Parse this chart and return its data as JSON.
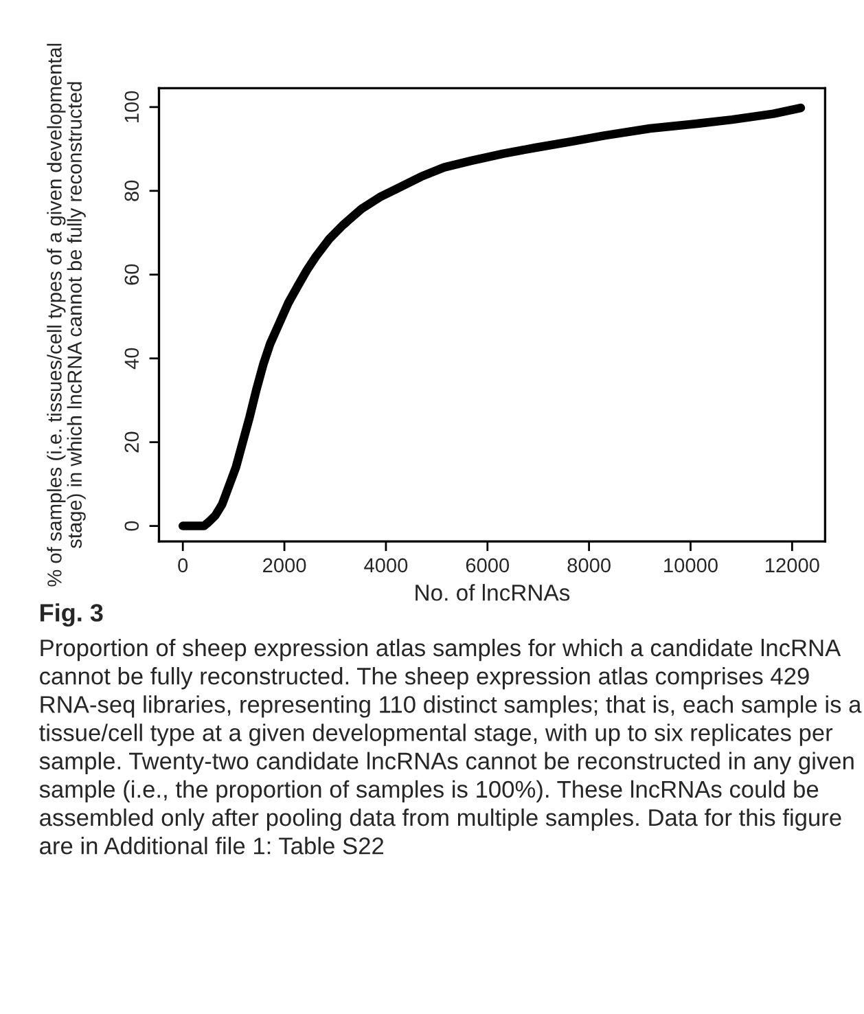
{
  "chart_data": {
    "type": "line",
    "xlabel": "No. of lncRNAs",
    "ylabel": "% of samples (i.e. tissues/cell types of a given developmental\nstage) in which lncRNA cannot be fully reconstructed",
    "x": [
      0,
      415,
      505,
      640,
      775,
      910,
      1045,
      1180,
      1315,
      1450,
      1585,
      1720,
      1900,
      2080,
      2260,
      2440,
      2620,
      2890,
      3160,
      3520,
      3880,
      4245,
      4695,
      5145,
      5685,
      6315,
      6945,
      7665,
      8300,
      9200,
      10100,
      10820,
      11630,
      12170
    ],
    "series": [
      {
        "color": "#000000",
        "values": [
          0,
          0,
          0.9,
          2.5,
          5.2,
          9.6,
          14,
          20,
          26,
          32.6,
          38.6,
          43.5,
          48.4,
          53.3,
          57.2,
          61,
          64.3,
          68.6,
          71.9,
          75.7,
          78.5,
          80.7,
          83.4,
          85.6,
          87.2,
          88.9,
          90.3,
          91.8,
          93.2,
          94.9,
          96,
          97,
          98.4,
          99.8
        ]
      }
    ],
    "xlim": [
      -470,
      12650
    ],
    "ylim": [
      -3.7,
      104.5
    ],
    "xticks": [
      0,
      2000,
      4000,
      6000,
      8000,
      10000,
      12000
    ],
    "yticks": [
      0,
      20,
      40,
      60,
      80,
      100
    ],
    "grid": false,
    "legend": false,
    "annotations": [
      "Fig. 3",
      "Proportion of sheep expression atlas samples for which a candidate lncRNA cannot be fully reconstructed. The sheep expression atlas comprises 429 RNA-seq libraries, representing 110 distinct samples; that is, each sample is a tissue/cell type at a given developmental stage, with up to six replicates per sample. Twenty-two candidate lncRNAs cannot be reconstructed in any given sample (i.e., the proportion of samples is 100%). These lncRNAs could be assembled only after pooling data from multiple samples. Data for this figure are in Additional file 1: Table S22"
    ]
  }
}
